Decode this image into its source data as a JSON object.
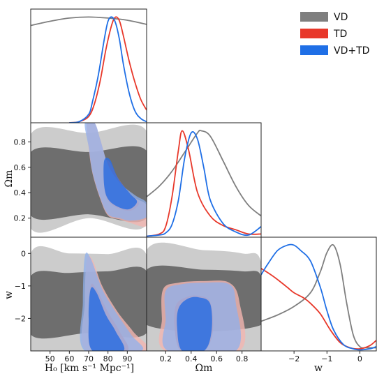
{
  "colors": {
    "VD": "#7f7f7f",
    "TD": "#e8382a",
    "VDTD": "#1f6fe6"
  },
  "legend": [
    {
      "key": "VD",
      "label": "VD",
      "color": "#7f7f7f"
    },
    {
      "key": "TD",
      "label": "TD",
      "color": "#e8382a"
    },
    {
      "key": "VDTD",
      "label": "VD+TD",
      "color": "#1f6fe6"
    }
  ],
  "chart_data": {
    "type": "corner",
    "parameters": [
      "H0",
      "Omega_m",
      "w"
    ],
    "axis_labels": {
      "H0": "H₀ [km s⁻¹ Mpc⁻¹]",
      "Omega_m": "Ωm",
      "w": "w"
    },
    "ranges": {
      "H0": [
        40,
        100
      ],
      "Omega_m": [
        0.05,
        0.95
      ],
      "w": [
        -3,
        0.5
      ]
    },
    "ticks": {
      "H0": [
        50,
        60,
        70,
        80,
        90
      ],
      "Omega_m_x": [
        0.2,
        0.4,
        0.6,
        0.8
      ],
      "Omega_m_y": [
        0.2,
        0.4,
        0.6,
        0.8
      ],
      "w_x": [
        -2,
        -1,
        0
      ],
      "w_y": [
        0,
        -1,
        -2
      ]
    },
    "tick_labels": {
      "H0": [
        "50",
        "60",
        "70",
        "80",
        "90"
      ],
      "Omega_m_x": [
        "0.2",
        "0.4",
        "0.6",
        "0.8"
      ],
      "Omega_m_y": [
        "0.8",
        "0.6",
        "0.4",
        "0.2"
      ],
      "w_x": [
        "−2",
        "−1",
        "0"
      ],
      "w_y": [
        "0",
        "−1",
        "−2"
      ]
    },
    "marginals": {
      "H0": [
        {
          "series": "VD",
          "x": [
            40,
            50,
            60,
            70,
            80,
            90,
            100
          ],
          "y": [
            0.92,
            0.96,
            0.99,
            1.0,
            0.99,
            0.97,
            0.93
          ]
        },
        {
          "series": "TD",
          "x": [
            60,
            65,
            70,
            73,
            76,
            79,
            82,
            84,
            86,
            88,
            91,
            94,
            97,
            100
          ],
          "y": [
            0,
            0.01,
            0.06,
            0.18,
            0.4,
            0.7,
            0.93,
            1.0,
            0.96,
            0.82,
            0.58,
            0.38,
            0.22,
            0.12
          ]
        },
        {
          "series": "VDTD",
          "x": [
            60,
            65,
            70,
            72,
            75,
            78,
            80,
            82,
            84,
            86,
            88,
            91,
            94,
            97,
            100
          ],
          "y": [
            0,
            0.01,
            0.08,
            0.2,
            0.45,
            0.78,
            0.96,
            1.0,
            0.94,
            0.78,
            0.55,
            0.28,
            0.11,
            0.04,
            0.01
          ]
        }
      ],
      "Omega_m": [
        {
          "series": "VD",
          "x": [
            0.05,
            0.15,
            0.25,
            0.35,
            0.45,
            0.48,
            0.55,
            0.65,
            0.75,
            0.85,
            0.95
          ],
          "y": [
            0.38,
            0.48,
            0.62,
            0.8,
            0.98,
            1.0,
            0.95,
            0.72,
            0.48,
            0.3,
            0.2
          ]
        },
        {
          "series": "TD",
          "x": [
            0.05,
            0.15,
            0.2,
            0.25,
            0.3,
            0.33,
            0.38,
            0.45,
            0.55,
            0.65,
            0.75,
            0.85,
            0.95
          ],
          "y": [
            0.01,
            0.03,
            0.1,
            0.38,
            0.82,
            1.0,
            0.82,
            0.42,
            0.2,
            0.11,
            0.07,
            0.03,
            0.03
          ]
        },
        {
          "series": "VDTD",
          "x": [
            0.05,
            0.15,
            0.2,
            0.25,
            0.3,
            0.35,
            0.4,
            0.45,
            0.5,
            0.55,
            0.65,
            0.75,
            0.85,
            0.95
          ],
          "y": [
            0.01,
            0.02,
            0.04,
            0.12,
            0.35,
            0.75,
            0.98,
            0.92,
            0.65,
            0.35,
            0.13,
            0.05,
            0.02,
            0.1
          ]
        }
      ],
      "w": [
        {
          "series": "VD",
          "x": [
            -3,
            -2.5,
            -2,
            -1.5,
            -1.2,
            -1.0,
            -0.8,
            -0.6,
            -0.4,
            -0.2,
            0.0,
            0.2,
            0.5
          ],
          "y": [
            0.28,
            0.34,
            0.42,
            0.55,
            0.75,
            0.93,
            1.0,
            0.82,
            0.45,
            0.15,
            0.04,
            0.03,
            0.03
          ]
        },
        {
          "series": "TD",
          "x": [
            -3,
            -2.7,
            -2.4,
            -2.2,
            -2.0,
            -1.7,
            -1.5,
            -1.2,
            -0.9,
            -0.6,
            -0.3,
            0.0,
            0.3,
            0.5
          ],
          "y": [
            0.78,
            0.72,
            0.65,
            0.6,
            0.55,
            0.5,
            0.45,
            0.35,
            0.2,
            0.08,
            0.03,
            0.02,
            0.05,
            0.1
          ]
        },
        {
          "series": "VDTD",
          "x": [
            -3,
            -2.8,
            -2.5,
            -2.2,
            -2.0,
            -1.8,
            -1.5,
            -1.2,
            -1.0,
            -0.8,
            -0.5,
            -0.2,
            0.0,
            0.3,
            0.5
          ],
          "y": [
            0.72,
            0.82,
            0.95,
            1.0,
            1.0,
            0.95,
            0.85,
            0.6,
            0.38,
            0.2,
            0.06,
            0.02,
            0.01,
            0.02,
            0.04
          ]
        }
      ]
    },
    "contours": {
      "H0_Omega_m": [
        {
          "series": "VD",
          "level": "2sigma",
          "points": [
            [
              40,
              0.86
            ],
            [
              70,
              0.87
            ],
            [
              100,
              0.885
            ],
            [
              100,
              0.15
            ],
            [
              70,
              0.2
            ],
            [
              40,
              0.12
            ]
          ]
        },
        {
          "series": "VD",
          "level": "1sigma",
          "points": [
            [
              40,
              0.72
            ],
            [
              70,
              0.72
            ],
            [
              100,
              0.73
            ],
            [
              100,
              0.2
            ],
            [
              70,
              0.23
            ],
            [
              40,
              0.22
            ]
          ]
        },
        {
          "series": "TD",
          "level": "2sigma",
          "points": [
            [
              69,
              0.95
            ],
            [
              73,
              0.95
            ],
            [
              76,
              0.82
            ],
            [
              80,
              0.62
            ],
            [
              86,
              0.48
            ],
            [
              94,
              0.36
            ],
            [
              100,
              0.3
            ],
            [
              100,
              0.14
            ],
            [
              92,
              0.16
            ],
            [
              86,
              0.19
            ],
            [
              80,
              0.22
            ],
            [
              76,
              0.35
            ],
            [
              72,
              0.55
            ],
            [
              70,
              0.75
            ]
          ]
        },
        {
          "series": "TD",
          "level": "1sigma",
          "points": [
            [
              78,
              0.64
            ],
            [
              81,
              0.64
            ],
            [
              85,
              0.52
            ],
            [
              91,
              0.4
            ],
            [
              96,
              0.32
            ],
            [
              92,
              0.26
            ],
            [
              85,
              0.28
            ],
            [
              80,
              0.34
            ],
            [
              78,
              0.45
            ]
          ]
        },
        {
          "series": "VDTD",
          "level": "2sigma",
          "points": [
            [
              68,
              0.95
            ],
            [
              73,
              0.95
            ],
            [
              76,
              0.82
            ],
            [
              80,
              0.62
            ],
            [
              86,
              0.48
            ],
            [
              94,
              0.38
            ],
            [
              100,
              0.32
            ],
            [
              100,
              0.21
            ],
            [
              92,
              0.18
            ],
            [
              86,
              0.2
            ],
            [
              80,
              0.23
            ],
            [
              76,
              0.36
            ],
            [
              72,
              0.56
            ],
            [
              70,
              0.76
            ]
          ]
        },
        {
          "series": "VDTD",
          "level": "1sigma",
          "points": [
            [
              78,
              0.65
            ],
            [
              81,
              0.66
            ],
            [
              85,
              0.52
            ],
            [
              91,
              0.4
            ],
            [
              95,
              0.33
            ],
            [
              91,
              0.27
            ],
            [
              85,
              0.29
            ],
            [
              80,
              0.35
            ],
            [
              78,
              0.46
            ]
          ]
        }
      ],
      "H0_w": [
        {
          "series": "VD",
          "level": "2sigma",
          "points": [
            [
              40,
              0.0
            ],
            [
              60,
              0.0
            ],
            [
              80,
              -0.02
            ],
            [
              100,
              -0.05
            ],
            [
              100,
              -3
            ],
            [
              40,
              -3
            ]
          ]
        },
        {
          "series": "VD",
          "level": "1sigma",
          "points": [
            [
              40,
              -0.7
            ],
            [
              60,
              -0.6
            ],
            [
              80,
              -0.55
            ],
            [
              100,
              -0.55
            ],
            [
              100,
              -2.45
            ],
            [
              70,
              -2.45
            ],
            [
              40,
              -2.5
            ]
          ]
        },
        {
          "series": "TD",
          "level": "2sigma",
          "points": [
            [
              69,
              -0.2
            ],
            [
              72,
              -0.2
            ],
            [
              77,
              -1.0
            ],
            [
              85,
              -1.8
            ],
            [
              93,
              -2.4
            ],
            [
              100,
              -3
            ],
            [
              69,
              -3
            ],
            [
              68,
              -1.5
            ]
          ]
        },
        {
          "series": "TD",
          "level": "1sigma",
          "points": [
            [
              71,
              -1.0
            ],
            [
              74,
              -1.1
            ],
            [
              80,
              -1.8
            ],
            [
              86,
              -2.4
            ],
            [
              90,
              -3
            ],
            [
              72,
              -3
            ],
            [
              70,
              -2.0
            ]
          ]
        },
        {
          "series": "VDTD",
          "level": "2sigma",
          "points": [
            [
              68,
              -0.1
            ],
            [
              71,
              -0.15
            ],
            [
              77,
              -1.1
            ],
            [
              84,
              -1.8
            ],
            [
              92,
              -2.5
            ],
            [
              97,
              -3
            ],
            [
              68,
              -3
            ],
            [
              67,
              -1.5
            ]
          ]
        },
        {
          "series": "VDTD",
          "level": "1sigma",
          "points": [
            [
              71,
              -1.1
            ],
            [
              74,
              -1.2
            ],
            [
              79,
              -1.9
            ],
            [
              84,
              -2.4
            ],
            [
              88,
              -3
            ],
            [
              72,
              -3
            ],
            [
              70,
              -2.0
            ]
          ]
        }
      ],
      "Omega_m_w": [
        {
          "series": "VD",
          "level": "2sigma",
          "points": [
            [
              0.05,
              0.1
            ],
            [
              0.5,
              0.1
            ],
            [
              0.8,
              0.0
            ],
            [
              0.95,
              -0.3
            ],
            [
              0.95,
              -3
            ],
            [
              0.05,
              -3
            ]
          ]
        },
        {
          "series": "VD",
          "level": "1sigma",
          "points": [
            [
              0.05,
              -0.5
            ],
            [
              0.5,
              -0.5
            ],
            [
              0.8,
              -0.55
            ],
            [
              0.95,
              -0.7
            ],
            [
              0.95,
              -2.2
            ],
            [
              0.05,
              -2.2
            ]
          ]
        },
        {
          "series": "TD",
          "level": "2sigma",
          "points": [
            [
              0.18,
              -1.1
            ],
            [
              0.3,
              -0.9
            ],
            [
              0.5,
              -0.85
            ],
            [
              0.7,
              -0.9
            ],
            [
              0.78,
              -1.5
            ],
            [
              0.78,
              -3
            ],
            [
              0.2,
              -3
            ],
            [
              0.17,
              -2.0
            ]
          ]
        },
        {
          "series": "TD",
          "level": "1sigma",
          "points": [
            [
              0.28,
              -1.6
            ],
            [
              0.36,
              -1.35
            ],
            [
              0.45,
              -1.3
            ],
            [
              0.55,
              -1.5
            ],
            [
              0.57,
              -2.4
            ],
            [
              0.5,
              -3
            ],
            [
              0.32,
              -3
            ],
            [
              0.27,
              -2.3
            ]
          ]
        },
        {
          "series": "VDTD",
          "level": "2sigma",
          "points": [
            [
              0.2,
              -1.15
            ],
            [
              0.32,
              -0.95
            ],
            [
              0.5,
              -0.9
            ],
            [
              0.7,
              -0.95
            ],
            [
              0.75,
              -1.5
            ],
            [
              0.75,
              -3
            ],
            [
              0.22,
              -3
            ],
            [
              0.2,
              -2.0
            ]
          ]
        },
        {
          "series": "VDTD",
          "level": "1sigma",
          "points": [
            [
              0.3,
              -1.7
            ],
            [
              0.37,
              -1.4
            ],
            [
              0.46,
              -1.35
            ],
            [
              0.55,
              -1.55
            ],
            [
              0.56,
              -2.4
            ],
            [
              0.5,
              -3
            ],
            [
              0.33,
              -3
            ],
            [
              0.29,
              -2.3
            ]
          ]
        }
      ]
    }
  }
}
